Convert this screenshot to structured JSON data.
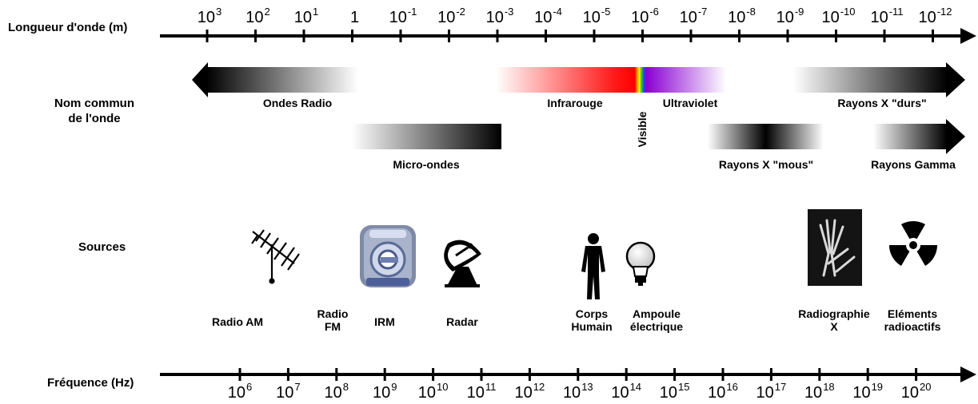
{
  "rows": {
    "wavelength": "Longueur d'onde (m)",
    "name": "Nom commun\nde l'onde",
    "sources": "Sources",
    "frequency": "Fréquence (Hz)"
  },
  "wavelength_ticks": [
    {
      "base": "10",
      "exp": "3"
    },
    {
      "base": "10",
      "exp": "2"
    },
    {
      "base": "10",
      "exp": "1"
    },
    {
      "base": "1",
      "exp": ""
    },
    {
      "base": "10",
      "exp": "-1"
    },
    {
      "base": "10",
      "exp": "-2"
    },
    {
      "base": "10",
      "exp": "-3"
    },
    {
      "base": "10",
      "exp": "-4"
    },
    {
      "base": "10",
      "exp": "-5"
    },
    {
      "base": "10",
      "exp": "-6"
    },
    {
      "base": "10",
      "exp": "-7"
    },
    {
      "base": "10",
      "exp": "-8"
    },
    {
      "base": "10",
      "exp": "-9"
    },
    {
      "base": "10",
      "exp": "-10"
    },
    {
      "base": "10",
      "exp": "-11"
    },
    {
      "base": "10",
      "exp": "-12"
    }
  ],
  "frequency_ticks": [
    {
      "base": "10",
      "exp": "6"
    },
    {
      "base": "10",
      "exp": "7"
    },
    {
      "base": "10",
      "exp": "8"
    },
    {
      "base": "10",
      "exp": "9"
    },
    {
      "base": "10",
      "exp": "10"
    },
    {
      "base": "10",
      "exp": "11"
    },
    {
      "base": "10",
      "exp": "12"
    },
    {
      "base": "10",
      "exp": "13"
    },
    {
      "base": "10",
      "exp": "14"
    },
    {
      "base": "10",
      "exp": "15"
    },
    {
      "base": "10",
      "exp": "16"
    },
    {
      "base": "10",
      "exp": "17"
    },
    {
      "base": "10",
      "exp": "18"
    },
    {
      "base": "10",
      "exp": "19"
    },
    {
      "base": "10",
      "exp": "20"
    }
  ],
  "bands": {
    "radio": "Ondes Radio",
    "microwave": "Micro-ondes",
    "infrared": "Infrarouge",
    "visible": "Visible",
    "ultraviolet": "Ultraviolet",
    "soft_xray": "Rayons X \"mous\"",
    "hard_xray": "Rayons X \"durs\"",
    "gamma": "Rayons Gamma"
  },
  "sources": {
    "radio_am": "Radio AM",
    "radio_fm": "Radio\nFM",
    "mri": "IRM",
    "radar": "Radar",
    "human_body": "Corps\nHumain",
    "light_bulb": "Ampoule\nélectrique",
    "xray_image": "Radiographie\nX",
    "radioactive": "Eléments\nradioactifs"
  },
  "colors": {
    "axis": "#000000",
    "band_dark": "#000000",
    "infrared": "#ff0000",
    "ultraviolet": "#8a00d4"
  },
  "icons": [
    "antenna-icon",
    "mri-scanner-icon",
    "satellite-dish-icon",
    "human-silhouette-icon",
    "light-bulb-icon",
    "xray-hand-icon",
    "radiation-trefoil-icon"
  ]
}
